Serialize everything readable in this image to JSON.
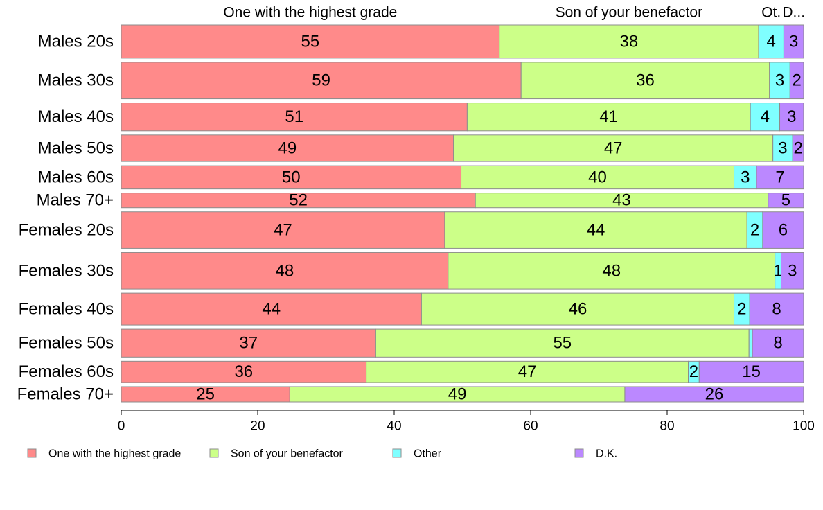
{
  "chart_data": {
    "type": "bar",
    "orientation": "horizontal",
    "stacked": true,
    "variable_width": true,
    "categories": [
      "Males 20s",
      "Males 30s",
      "Males 40s",
      "Males 50s",
      "Males 60s",
      "Males 70+",
      "Females 20s",
      "Females 30s",
      "Females 40s",
      "Females 50s",
      "Females 60s",
      "Females 70+"
    ],
    "series": [
      {
        "name": "One with the highest grade",
        "color": "#FF8A8A",
        "values": [
          55.4,
          58.6,
          50.7,
          48.7,
          49.8,
          51.9,
          47.4,
          47.9,
          44.0,
          37.3,
          35.9,
          24.7
        ],
        "labels": [
          "55",
          "59",
          "51",
          "49",
          "50",
          "52",
          "47",
          "48",
          "44",
          "37",
          "36",
          "25"
        ]
      },
      {
        "name": "Son of your benefactor",
        "color": "#CCFF88",
        "values": [
          38.0,
          36.4,
          41.5,
          46.8,
          40.0,
          42.9,
          44.3,
          47.9,
          45.8,
          54.7,
          47.2,
          49.1
        ],
        "labels": [
          "38",
          "36",
          "41",
          "47",
          "40",
          "43",
          "44",
          "48",
          "46",
          "55",
          "47",
          "49"
        ]
      },
      {
        "name": "Other",
        "color": "#7FFFFF",
        "values": [
          3.7,
          3.0,
          4.3,
          2.9,
          3.3,
          0.0,
          2.3,
          0.9,
          2.3,
          0.5,
          1.6,
          0.0
        ],
        "labels": [
          "4",
          "3",
          "4",
          "3",
          "3",
          "",
          "2",
          "1",
          "2",
          "",
          "2",
          ""
        ]
      },
      {
        "name": "D.K.",
        "color": "#BB88FF",
        "values": [
          2.9,
          2.0,
          3.5,
          1.6,
          6.9,
          5.2,
          6.0,
          3.3,
          7.9,
          7.5,
          15.3,
          26.2
        ],
        "labels": [
          "3",
          "2",
          "3",
          "2",
          "7",
          "5",
          "6",
          "3",
          "8",
          "8",
          "15",
          "26"
        ]
      }
    ],
    "row_weights": [
      50,
      55,
      42,
      40,
      35,
      22,
      55,
      55,
      48,
      42,
      32,
      23
    ],
    "top_labels": [
      {
        "text": "One with the highest grade",
        "series": 0
      },
      {
        "text": "Son of your benefactor",
        "series": 1
      },
      {
        "text": "Ot.",
        "series": 2
      },
      {
        "text": "D...",
        "series": 3
      }
    ],
    "x_ticks": [
      "0",
      "20",
      "40",
      "60",
      "80",
      "100"
    ],
    "xlim": [
      0,
      100
    ],
    "xlabel": "",
    "ylabel": "",
    "grid": false,
    "legend_position": "bottom"
  }
}
